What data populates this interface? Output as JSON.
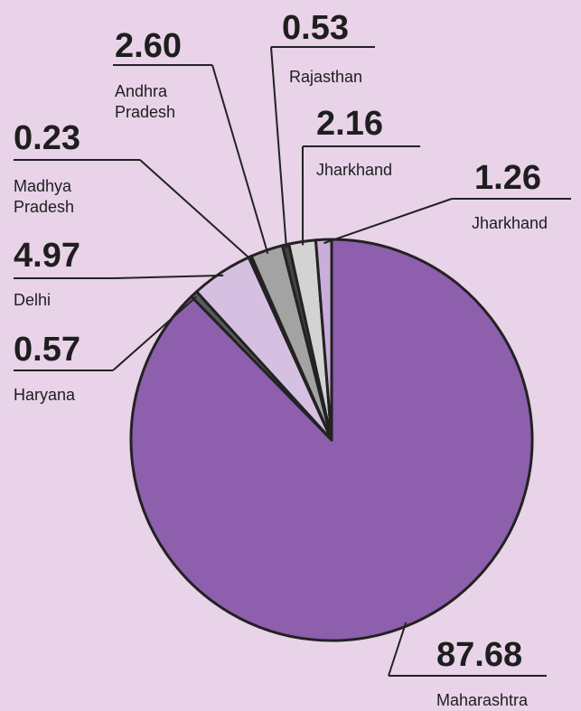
{
  "chart_data": {
    "type": "pie",
    "categories": [
      "Maharashtra",
      "Haryana",
      "Delhi",
      "Madhya Pradesh",
      "Andhra Pradesh",
      "Rajasthan",
      "Jharkhand",
      "Jharkhand"
    ],
    "values": [
      87.68,
      0.57,
      4.97,
      0.23,
      2.6,
      0.53,
      2.16,
      1.26
    ],
    "value_labels": [
      "87.68",
      "0.57",
      "4.97",
      "0.23",
      "2.60",
      "0.53",
      "2.16",
      "1.26"
    ],
    "colors": [
      "#8e5fad",
      "#5a5a5a",
      "#d6c0e2",
      "#333333",
      "#a3a3a3",
      "#444444",
      "#d3d3d3",
      "#c9aedb"
    ]
  }
}
